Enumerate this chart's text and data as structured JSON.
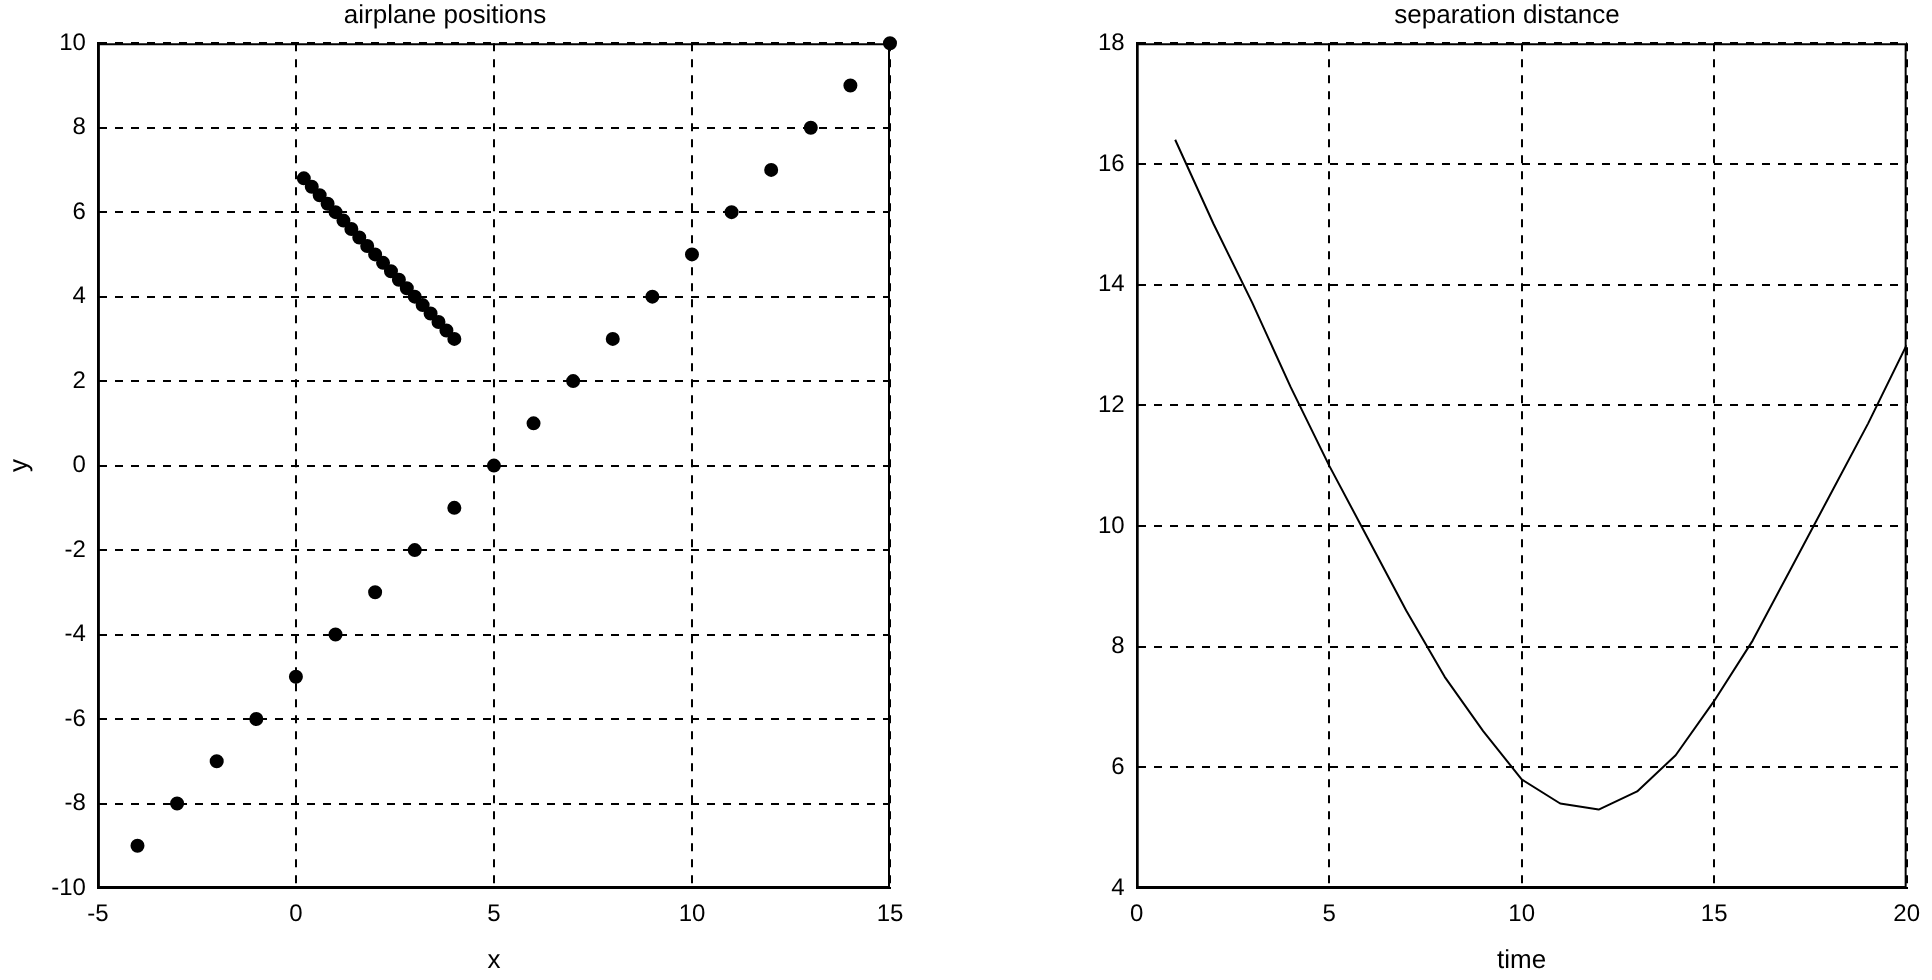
{
  "chart_data": [
    {
      "type": "scatter",
      "title": "airplane positions",
      "xlabel": "x",
      "ylabel": "y",
      "xlim": [
        -5,
        15
      ],
      "xticks": [
        -5,
        0,
        5,
        10,
        15
      ],
      "ylim": [
        -10,
        10
      ],
      "yticks": [
        -10,
        -8,
        -6,
        -4,
        -2,
        0,
        2,
        4,
        6,
        8,
        10
      ],
      "grid": true,
      "marker": "circle",
      "series": [
        {
          "color": "#000000",
          "x": [
            -4,
            -3,
            -2,
            -1,
            0,
            1,
            2,
            3,
            4,
            5,
            6,
            7,
            8,
            9,
            10,
            11,
            12,
            13,
            14,
            15
          ],
          "values": [
            -9,
            -8,
            -7,
            -6,
            -5,
            -4,
            -3,
            -2,
            -1,
            0,
            1,
            2,
            3,
            4,
            5,
            6,
            7,
            8,
            9,
            10
          ]
        },
        {
          "color": "#000000",
          "x": [
            0.2,
            0.4,
            0.6,
            0.8,
            1.0,
            1.2,
            1.4,
            1.6,
            1.8,
            2.0,
            2.2,
            2.4,
            2.6,
            2.8,
            3.0,
            3.2,
            3.4,
            3.6,
            3.8,
            4.0
          ],
          "values": [
            6.8,
            6.6,
            6.4,
            6.2,
            6.0,
            5.8,
            5.6,
            5.4,
            5.2,
            5.0,
            4.8,
            4.6,
            4.4,
            4.2,
            4.0,
            3.8,
            3.6,
            3.4,
            3.2,
            3.0
          ]
        }
      ]
    },
    {
      "type": "line",
      "title": "separation distance",
      "xlabel": "time",
      "xlim": [
        0,
        20
      ],
      "xticks": [
        0,
        5,
        10,
        15,
        20
      ],
      "ylim": [
        4,
        18
      ],
      "yticks": [
        4,
        6,
        8,
        10,
        12,
        14,
        16,
        18
      ],
      "grid": true,
      "series": [
        {
          "color": "#000000",
          "x": [
            1,
            2,
            3,
            4,
            5,
            6,
            7,
            8,
            9,
            10,
            11,
            12,
            13,
            14,
            15,
            16,
            17,
            18,
            19,
            20
          ],
          "values": [
            16.4,
            15.0,
            13.7,
            12.3,
            11.0,
            9.8,
            8.6,
            7.5,
            6.6,
            5.8,
            5.4,
            5.3,
            5.6,
            6.2,
            7.1,
            8.1,
            9.3,
            10.5,
            11.7,
            13.0
          ]
        }
      ]
    }
  ]
}
